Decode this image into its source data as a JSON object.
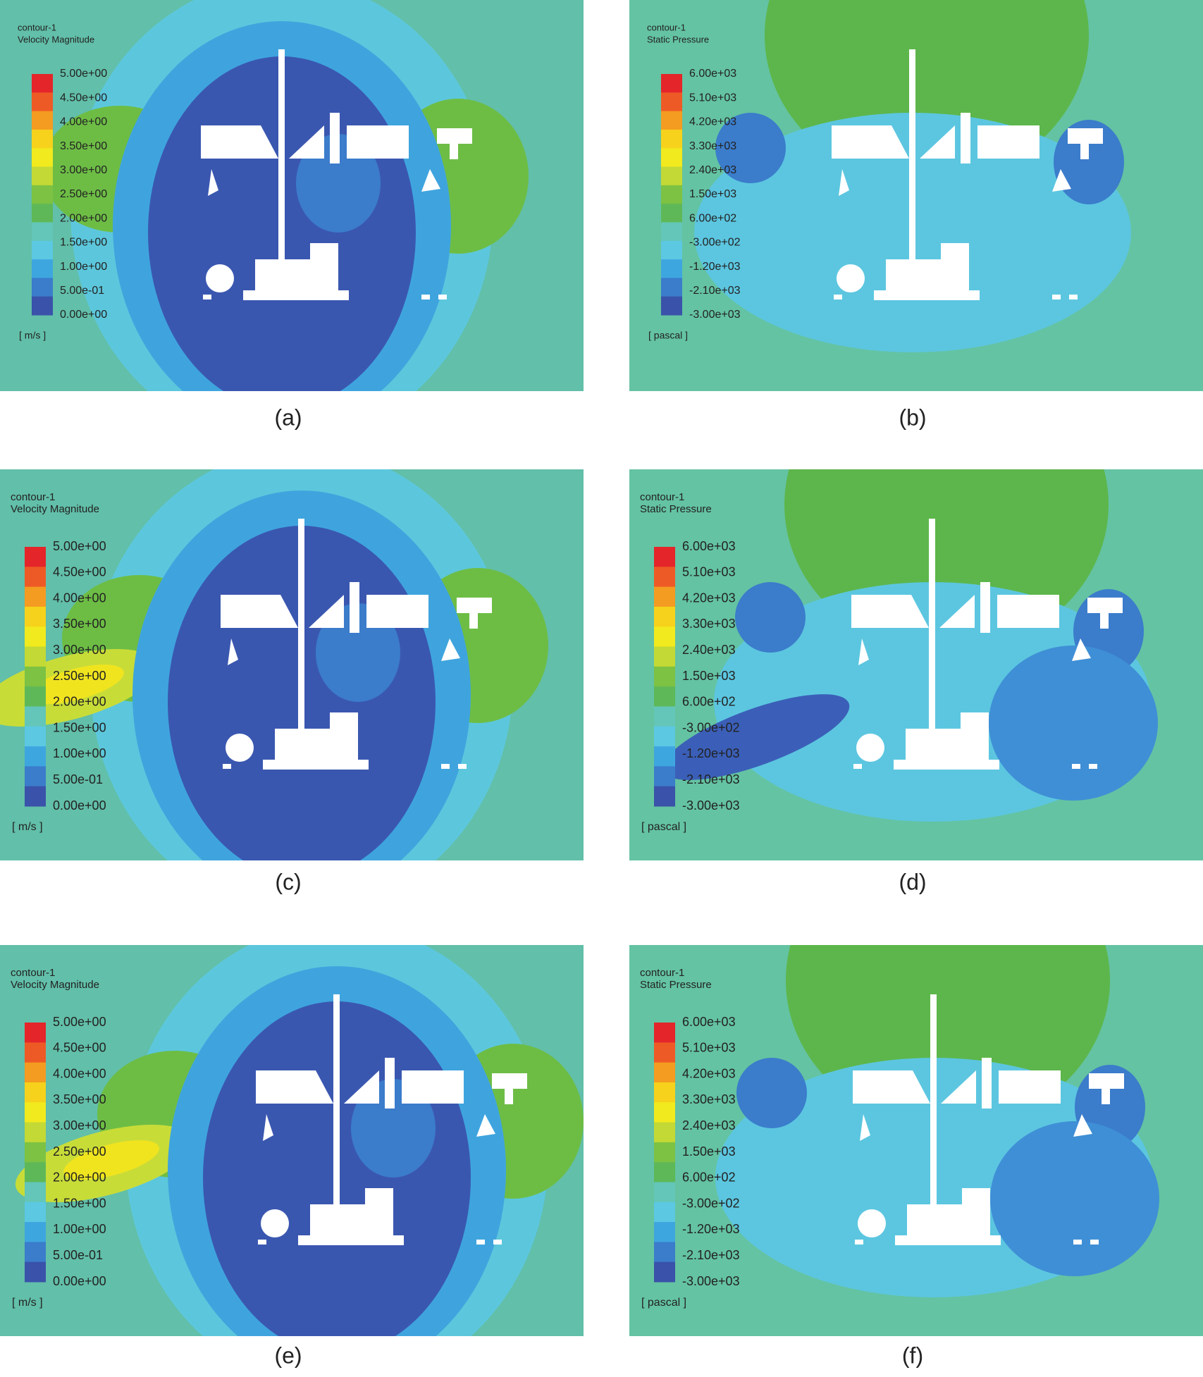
{
  "panels": [
    {
      "legend_title": "contour-1",
      "quantity": "Velocity Magnitude",
      "levels": [
        "5.00e+00",
        "4.50e+00",
        "4.00e+00",
        "3.50e+00",
        "3.00e+00",
        "2.50e+00",
        "2.00e+00",
        "1.50e+00",
        "1.00e+00",
        "5.00e-01",
        "0.00e+00"
      ],
      "unit": "[ m/s ]",
      "caption": "(a)"
    },
    {
      "legend_title": "contour-1",
      "quantity": "Static Pressure",
      "levels": [
        "6.00e+03",
        "5.10e+03",
        "4.20e+03",
        "3.30e+03",
        "2.40e+03",
        "1.50e+03",
        "6.00e+02",
        "-3.00e+02",
        "-1.20e+03",
        "-2.10e+03",
        "-3.00e+03"
      ],
      "unit": "[ pascal ]",
      "caption": "(b)"
    },
    {
      "legend_title": "contour-1",
      "quantity": "Velocity Magnitude",
      "levels": [
        "5.00e+00",
        "4.50e+00",
        "4.00e+00",
        "3.50e+00",
        "3.00e+00",
        "2.50e+00",
        "2.00e+00",
        "1.50e+00",
        "1.00e+00",
        "5.00e-01",
        "0.00e+00"
      ],
      "unit": "[ m/s ]",
      "caption": "(c)"
    },
    {
      "legend_title": "contour-1",
      "quantity": "Static Pressure",
      "levels": [
        "6.00e+03",
        "5.10e+03",
        "4.20e+03",
        "3.30e+03",
        "2.40e+03",
        "1.50e+03",
        "6.00e+02",
        "-3.00e+02",
        "-1.20e+03",
        "-2.10e+03",
        "-3.00e+03"
      ],
      "unit": "[ pascal ]",
      "caption": "(d)"
    },
    {
      "legend_title": "contour-1",
      "quantity": "Velocity Magnitude",
      "levels": [
        "5.00e+00",
        "4.50e+00",
        "4.00e+00",
        "3.50e+00",
        "3.00e+00",
        "2.50e+00",
        "2.00e+00",
        "1.50e+00",
        "1.00e+00",
        "5.00e-01",
        "0.00e+00"
      ],
      "unit": "[ m/s ]",
      "caption": "(e)"
    },
    {
      "legend_title": "contour-1",
      "quantity": "Static Pressure",
      "levels": [
        "6.00e+03",
        "5.10e+03",
        "4.20e+03",
        "3.30e+03",
        "2.40e+03",
        "1.50e+03",
        "6.00e+02",
        "-3.00e+02",
        "-1.20e+03",
        "-2.10e+03",
        "-3.00e+03"
      ],
      "unit": "[ pascal ]",
      "caption": "(f)"
    }
  ]
}
